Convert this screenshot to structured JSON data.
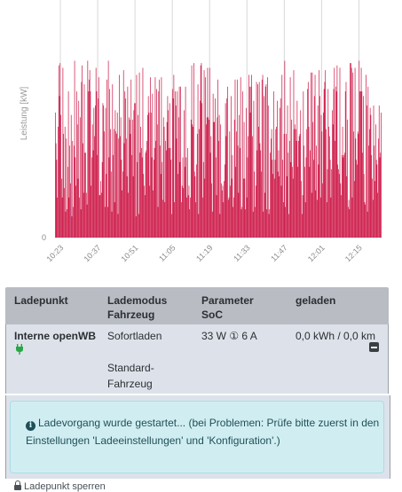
{
  "chart_data": {
    "type": "bar",
    "ylabel": "Leistung [kW]",
    "y_ticks": [
      "0"
    ],
    "x_ticks": [
      "10:23",
      "10:37",
      "10:51",
      "11:05",
      "11:19",
      "11:33",
      "11:47",
      "12:01",
      "12:15"
    ],
    "ylim": [
      0,
      1
    ],
    "colors": {
      "red": "#cc1444",
      "blue": "#4a5fd6",
      "grid": "#d8d8d8"
    },
    "series": [
      {
        "values": [
          0.53,
          0.4,
          0.33,
          0.17,
          0.47,
          0.73,
          0.6,
          0.74,
          0.52,
          0.25,
          0.17,
          0.72,
          0.44,
          0.21,
          0.47,
          0.11,
          0.42,
          0.12,
          0.3,
          0.62,
          0.17,
          0.39,
          0.23,
          0.52,
          0.09,
          0.41,
          0.13,
          0.39,
          0.75,
          0.34,
          0.22,
          0.62,
          0.48,
          0.25,
          0.58,
          0.17,
          0.51,
          0.12,
          0.66,
          0.73,
          0.4,
          0.19,
          0.65,
          0.36,
          0.36,
          0.19,
          0.14,
          0.75,
          0.62,
          0.67,
          0.71,
          0.62,
          0.22,
          0.34,
          0.48,
          0.37,
          0.55,
          0.43,
          0.56,
          0.72,
          0.62,
          0.35,
          0.59,
          0.68,
          0.18,
          0.18,
          0.24,
          0.19,
          0.32,
          0.57,
          0.56,
          0.45,
          0.13,
          0.55,
          0.27,
          0.67,
          0.13,
          0.75,
          0.34,
          0.63,
          0.46,
          0.28,
          0.11,
          0.65,
          0.35,
          0.46,
          0.15,
          0.54,
          0.45,
          0.44,
          0.53,
          0.1,
          0.42,
          0.69,
          0.43,
          0.51,
          0.33,
          0.2,
          0.28,
          0.71,
          0.4,
          0.62,
          0.59,
          0.42,
          0.26,
          0.64,
          0.19,
          0.51,
          0.5,
          0.44,
          0.67,
          0.35,
          0.5,
          0.26,
          0.54,
          0.57,
          0.57,
          0.09,
          0.69,
          0.32,
          0.52,
          0.1,
          0.7,
          0.36,
          0.47,
          0.38,
          0.34,
          0.72,
          0.27,
          0.22,
          0.18,
          0.36,
          0.37,
          0.41,
          0.52,
          0.6,
          0.53,
          0.22,
          0.68,
          0.53,
          0.34,
          0.61,
          0.2,
          0.33,
          0.38,
          0.68,
          0.41,
          0.63,
          0.48,
          0.13,
          0.62,
          0.67,
          0.39,
          0.27,
          0.68,
          0.32,
          0.16,
          0.51,
          0.47,
          0.15,
          0.41,
          0.37,
          0.49,
          0.6,
          0.54,
          0.38,
          0.57,
          0.38,
          0.33,
          0.1,
          0.63,
          0.59,
          0.69,
          0.15,
          0.62,
          0.56,
          0.42,
          0.62,
          0.27,
          0.51,
          0.64,
          0.32,
          0.64,
          0.15,
          0.22,
          0.34,
          0.21,
          0.54,
          0.3,
          0.64,
          0.34,
          0.17,
          0.38,
          0.18,
          0.22,
          0.12,
          0.17,
          0.5,
          0.73,
          0.48,
          0.47,
          0.74,
          0.28,
          0.26,
          0.15,
          0.31,
          0.44,
          0.65,
          0.1,
          0.46,
          0.58,
          0.73,
          0.74,
          0.57,
          0.17,
          0.32,
          0.71,
          0.25,
          0.68,
          0.48,
          0.51,
          0.72,
          0.51,
          0.5,
          0.72,
          0.36,
          0.43,
          0.23,
          0.11,
          0.61,
          0.49,
          0.49,
          0.59,
          0.34,
          0.18,
          0.51,
          0.67,
          0.41,
          0.52,
          0.1,
          0.48,
          0.23,
          0.2,
          0.22,
          0.15,
          0.24,
          0.31,
          0.57,
          0.43,
          0.59,
          0.64,
          0.16,
          0.17,
          0.45,
          0.22,
          0.6,
          0.25,
          0.35,
          0.13,
          0.17,
          0.5,
          0.67,
          0.3,
          0.45,
          0.67,
          0.39,
          0.19,
          0.52,
          0.38,
          0.68,
          0.12,
          0.13,
          0.62,
          0.25,
          0.49,
          0.25,
          0.12,
          0.55,
          0.17,
          0.34,
          0.43,
          0.69,
          0.64,
          0.53,
          0.64,
          0.69,
          0.43,
          0.11,
          0.58,
          0.28,
          0.13,
          0.22,
          0.66,
          0.37,
          0.65,
          0.47,
          0.66,
          0.4,
          0.37,
          0.28,
          0.67,
          0.69,
          0.11,
          0.6,
          0.19,
          0.64,
          0.65,
          0.12,
          0.68,
          0.56,
          0.1,
          0.12,
          0.36,
          0.42,
          0.46,
          0.33,
          0.27,
          0.62,
          0.25,
          0.33,
          0.46,
          0.47,
          0.58,
          0.28,
          0.37,
          0.26,
          0.55,
          0.59,
          0.22,
          0.69,
          0.33,
          0.15,
          0.44,
          0.75,
          0.13,
          0.44,
          0.26,
          0.56,
          0.36,
          0.1,
          0.41,
          0.68,
          0.32,
          0.5,
          0.3,
          0.25,
          0.71,
          0.46,
          0.48,
          0.46,
          0.41,
          0.58,
          0.3,
          0.41,
          0.43,
          0.44,
          0.54,
          0.24,
          0.1,
          0.18,
          0.62,
          0.39,
          0.3,
          0.15,
          0.34,
          0.46,
          0.63,
          0.66,
          0.47,
          0.3,
          0.37,
          0.7,
          0.19,
          0.7,
          0.49,
          0.33,
          0.6,
          0.69,
          0.2,
          0.39,
          0.16,
          0.56,
          0.31,
          0.71,
          0.6,
          0.17,
          0.52,
          0.45,
          0.23,
          0.53,
          0.63,
          0.66,
          0.71,
          0.46,
          0.15,
          0.29,
          0.63,
          0.47,
          0.43,
          0.33,
          0.17,
          0.29,
          0.54,
          0.48,
          0.63,
          0.72,
          0.41,
          0.64,
          0.62,
          0.73,
          0.31,
          0.29,
          0.27,
          0.72,
          0.23,
          0.18,
          0.35,
          0.47,
          0.34,
          0.35,
          0.36,
          0.62,
          0.66,
          0.26,
          0.5,
          0.13,
          0.16,
          0.12,
          0.74,
          0.74,
          0.72,
          0.17,
          0.7,
          0.45,
          0.24,
          0.72,
          0.42,
          0.33,
          0.31,
          0.45,
          0.44,
          0.75,
          0.62,
          0.62,
          0.72,
          0.62,
          0.36,
          0.6,
          0.27,
          0.15,
          0.14,
          0.69,
          0.56,
          0.11,
          0.64,
          0.39,
          0.46,
          0.55,
          0.52,
          0.35,
          0.25,
          0.16,
          0.56,
          0.39,
          0.24,
          0.48,
          0.33,
          0.31,
          0.19,
          0.42,
          0.56,
          0.34,
          0.36,
          0.53
        ]
      },
      {
        "values": [
          0.0,
          0.0,
          0.0,
          0.0,
          0.0,
          0.0,
          0.0,
          0.0,
          0.0,
          0.0,
          0.0,
          0.0,
          0.0,
          0.0,
          0.0,
          0.0,
          0.0,
          0.0,
          0.0,
          0.0,
          0.0,
          0.3,
          0.0,
          0.0,
          0.0,
          0.0,
          0.0,
          0.0,
          0.0,
          0.0,
          0.0,
          0.0,
          0.0,
          0.0,
          0.0,
          0.0,
          0.0,
          0.0,
          0.0,
          0.0,
          0.0,
          0.0,
          0.0,
          0.0,
          0.0,
          0.0,
          0.0,
          0.0,
          0.0,
          0.0,
          0.0,
          0.0,
          0.0,
          0.0,
          0.0,
          0.0,
          0.0,
          0.0,
          0.0,
          0.0,
          0.0,
          0.0,
          0.0,
          0.0,
          0.0,
          0.0,
          0.0,
          0.0,
          0.0,
          0.0,
          0.0,
          0.0,
          0.0,
          0.0,
          0.0,
          0.0,
          0.0,
          0.0,
          0.0,
          0.0,
          0.0,
          0.0,
          0.0,
          0.0,
          0.0,
          0.0,
          0.0,
          0.0,
          0.0,
          0.0,
          0.0,
          0.0,
          0.0,
          0.0,
          0.0,
          0.0,
          0.0,
          0.0,
          0.0,
          0.0,
          0.0,
          0.0,
          0.0,
          0.0,
          0.0,
          0.0,
          0.0,
          0.0,
          0.0,
          0.0,
          0.0,
          0.0,
          0.0,
          0.0,
          0.0,
          0.0,
          0.0,
          0.0,
          0.0,
          0.0,
          0.0,
          0.0,
          0.0,
          0.0,
          0.0,
          0.0,
          0.0,
          0.0,
          0.0,
          0.0,
          0.0,
          0.0,
          0.0,
          0.0,
          0.0,
          0.0,
          0.0,
          0.0,
          0.0,
          0.0,
          0.0,
          0.0,
          0.0,
          0.0,
          0.0,
          0.0,
          0.0,
          0.0,
          0.0,
          0.0,
          0.0,
          0.0,
          0.0,
          0.0,
          0.0,
          0.0,
          0.0,
          0.0,
          0.0,
          0.0,
          0.0,
          0.0,
          0.0,
          0.0,
          0.0,
          0.0,
          0.0,
          0.0,
          0.0,
          0.0,
          0.0,
          0.0,
          0.0,
          0.0,
          0.0,
          0.0,
          0.0,
          0.0,
          0.0,
          0.0,
          0.0,
          0.0,
          0.0,
          0.0,
          0.0,
          0.0,
          0.0,
          0.0,
          0.0,
          0.0,
          0.0,
          0.0,
          0.0,
          0.0,
          0.0,
          0.0,
          0.0,
          0.0,
          0.0,
          0.0,
          0.0,
          0.0,
          0.0,
          0.0,
          0.0,
          0.0,
          0.0,
          0.0,
          0.0,
          0.0,
          0.0,
          0.0,
          0.0,
          0.0,
          0.0,
          0.0,
          0.0,
          0.0,
          0.0,
          0.0,
          0.0,
          0.0,
          0.0,
          0.0,
          0.0,
          0.0,
          0.0,
          0.0,
          0.0,
          0.0,
          0.0,
          0.0,
          0.0,
          0.0,
          0.0,
          0.0,
          0.0,
          0.0,
          0.0,
          0.0,
          0.0,
          0.0,
          0.0,
          0.0,
          0.0,
          0.0,
          0.0,
          0.0,
          0.0,
          0.0,
          0.0,
          0.0,
          0.0,
          0.0,
          0.0,
          0.0,
          0.0,
          0.0,
          0.0,
          0.0,
          0.0,
          0.0,
          0.0,
          0.0,
          0.0,
          0.0,
          0.0,
          0.0,
          0.0,
          0.0,
          0.0,
          0.0,
          0.0,
          0.0,
          0.0,
          0.0,
          0.0,
          0.0,
          0.0,
          0.0,
          0.0,
          0.0,
          0.0,
          0.0,
          0.0,
          0.0,
          0.0,
          0.0,
          0.0,
          0.0,
          0.0,
          0.0,
          0.0,
          0.0,
          0.0,
          0.0,
          0.0,
          0.0,
          0.0,
          0.0,
          0.0,
          0.0,
          0.0,
          0.0,
          0.0,
          0.0,
          0.0,
          0.0,
          0.0,
          0.0,
          0.0,
          0.0,
          0.0,
          0.0,
          0.0,
          0.0,
          0.0,
          0.0,
          0.0,
          0.0,
          0.0,
          0.0,
          0.0,
          0.0,
          0.0,
          0.0,
          0.0,
          0.0,
          0.0,
          0.0,
          0.0,
          0.0,
          0.0,
          0.0,
          0.0,
          0.0,
          0.0,
          0.0,
          0.0,
          0.0,
          0.0,
          0.0,
          0.0,
          0.0,
          0.0,
          0.0,
          0.0,
          0.0,
          0.0,
          0.0,
          0.0,
          0.0,
          0.0,
          0.0,
          0.0,
          0.0,
          0.0,
          0.0,
          0.0,
          0.0,
          0.0,
          0.0,
          0.0,
          0.0,
          0.0,
          0.0,
          0.0,
          0.0,
          0.0,
          0.0,
          0.0,
          0.0,
          0.0,
          0.0,
          0.0,
          0.0,
          0.0,
          0.0,
          0.0,
          0.0,
          0.0,
          0.0,
          0.0,
          0.0,
          0.0,
          0.0,
          0.0,
          0.0,
          0.0,
          0.0,
          0.0,
          0.0,
          0.0,
          0.0,
          0.0,
          0.0,
          0.0,
          0.0,
          0.0,
          0.0,
          0.0,
          0.0,
          0.0,
          0.0,
          0.0,
          0.0,
          0.0,
          0.0,
          0.0,
          0.0,
          0.0,
          0.0,
          0.0,
          0.0,
          0.0,
          0.0,
          0.0,
          0.0,
          0.0,
          0.0,
          0.0,
          0.0,
          0.0,
          0.0,
          0.0,
          0.0,
          0.0,
          0.0,
          0.0,
          0.0,
          0.0,
          0.0,
          0.0,
          0.0,
          0.0,
          0.0,
          0.0,
          0.0,
          0.0,
          0.0,
          0.0,
          0.0,
          0.0,
          0.0,
          0.0,
          0.0,
          0.0,
          0.0,
          0.0,
          0.0,
          0.0,
          0.0,
          0.0,
          0.0,
          0.0,
          0.0,
          0.0,
          0.0,
          0.0,
          0.0,
          0.0,
          0.0,
          0.0,
          0.0,
          0.0,
          0.0,
          0.0,
          0.0,
          0.0,
          0.0,
          0.0,
          0.0,
          0.0,
          0.0,
          0.0,
          0.0
        ]
      }
    ]
  },
  "table": {
    "headers": {
      "ladepunkt": "Ladepunkt",
      "lademodus": "Lademodus",
      "fahrzeug": "Fahrzeug",
      "parameter": "Parameter",
      "soc": "SoC",
      "geladen": "geladen"
    },
    "row": {
      "name": "Interne openWB",
      "mode": "Sofortladen",
      "vehicle_line1": "Standard-",
      "vehicle_line2": "Fahrzeug",
      "parameter": "33 W ① 6 A",
      "charged": "0,0 kWh / 0,0 km"
    }
  },
  "alert": {
    "icon": "info-circle-icon",
    "text": "Ladevorgang wurde gestartet... (bei Problemen: Prüfe bitte zuerst in den Einstellungen 'Ladeeinstellungen' und 'Konfiguration'.)"
  },
  "footer": {
    "lock_label": "Ladepunkt sperren"
  }
}
